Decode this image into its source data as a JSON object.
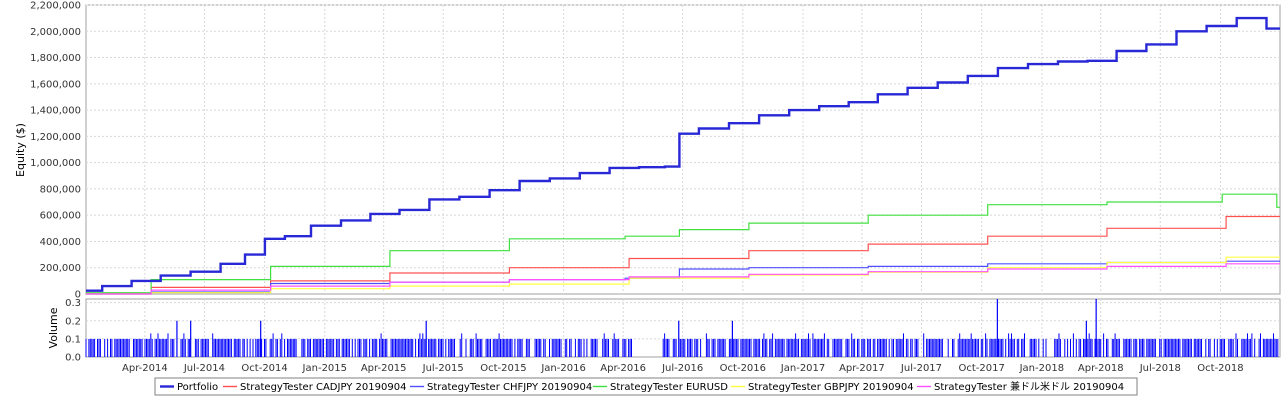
{
  "chart_data": [
    {
      "type": "line",
      "ylabel": "Equity ($)",
      "ylim": [
        0,
        2200000
      ],
      "yticks": [
        0,
        200000,
        400000,
        600000,
        800000,
        1000000,
        1200000,
        1400000,
        1600000,
        1800000,
        2000000,
        2200000
      ],
      "ytick_labels": [
        "0",
        "200,000",
        "400,000",
        "600,000",
        "800,000",
        "1,000,000",
        "1,200,000",
        "1,400,000",
        "1,600,000",
        "1,800,000",
        "2,000,000",
        "2,200,000"
      ],
      "grid": true,
      "legend_position": "bottom",
      "series": [
        {
          "name": "Portfolio",
          "color": "#2828d6",
          "x": [
            "2014-01-01",
            "2014-02-15",
            "2014-04-01",
            "2014-05-15",
            "2014-07-01",
            "2014-08-15",
            "2014-09-15",
            "2014-10-15",
            "2014-11-15",
            "2015-01-01",
            "2015-02-15",
            "2015-04-01",
            "2015-05-15",
            "2015-07-01",
            "2015-08-15",
            "2015-10-01",
            "2015-11-15",
            "2016-01-01",
            "2016-02-15",
            "2016-04-01",
            "2016-05-15",
            "2016-06-20",
            "2016-07-01",
            "2016-08-15",
            "2016-10-01",
            "2016-11-15",
            "2017-01-01",
            "2017-02-15",
            "2017-04-01",
            "2017-05-15",
            "2017-07-01",
            "2017-08-15",
            "2017-10-01",
            "2017-11-15",
            "2018-01-01",
            "2018-02-15",
            "2018-04-01",
            "2018-05-15",
            "2018-07-01",
            "2018-08-15",
            "2018-10-01",
            "2018-11-15",
            "2018-12-31"
          ],
          "values": [
            25000,
            60000,
            100000,
            140000,
            170000,
            230000,
            300000,
            420000,
            440000,
            520000,
            560000,
            610000,
            640000,
            720000,
            740000,
            790000,
            860000,
            880000,
            920000,
            960000,
            965000,
            970000,
            1220000,
            1260000,
            1300000,
            1360000,
            1400000,
            1430000,
            1460000,
            1520000,
            1570000,
            1610000,
            1660000,
            1720000,
            1750000,
            1770000,
            1775000,
            1850000,
            1900000,
            2000000,
            2040000,
            2100000,
            2020000
          ]
        },
        {
          "name": "StrategyTester CADJPY 20190904",
          "color": "#ff5050",
          "x": [
            "2014-01-01",
            "2014-07-01",
            "2015-01-01",
            "2015-07-01",
            "2016-01-01",
            "2016-07-01",
            "2017-01-01",
            "2017-07-01",
            "2018-01-01",
            "2018-07-01",
            "2018-12-31"
          ],
          "values": [
            5000,
            50000,
            100000,
            160000,
            200000,
            270000,
            330000,
            380000,
            440000,
            500000,
            590000
          ]
        },
        {
          "name": "StrategyTester CHFJPY 20190904",
          "color": "#5050ff",
          "x": [
            "2014-01-01",
            "2014-07-01",
            "2015-01-01",
            "2015-07-01",
            "2016-01-01",
            "2016-06-20",
            "2016-07-01",
            "2017-01-01",
            "2017-07-01",
            "2018-01-01",
            "2018-07-01",
            "2018-12-31"
          ],
          "values": [
            0,
            15000,
            80000,
            90000,
            110000,
            120000,
            190000,
            200000,
            210000,
            230000,
            240000,
            250000
          ]
        },
        {
          "name": "StrategyTester EURUSD",
          "color": "#40e040",
          "x": [
            "2014-01-01",
            "2014-07-01",
            "2015-01-01",
            "2015-07-01",
            "2016-01-01",
            "2016-06-20",
            "2016-07-01",
            "2017-01-01",
            "2017-07-01",
            "2018-01-01",
            "2018-07-01",
            "2018-12-20",
            "2018-12-31"
          ],
          "values": [
            10000,
            110000,
            210000,
            330000,
            420000,
            440000,
            490000,
            540000,
            600000,
            680000,
            700000,
            760000,
            660000
          ]
        },
        {
          "name": "StrategyTester GBPJPY 20190904",
          "color": "#ffff40",
          "x": [
            "2014-01-01",
            "2014-07-01",
            "2015-01-01",
            "2015-07-01",
            "2016-01-01",
            "2016-07-01",
            "2017-01-01",
            "2017-07-01",
            "2018-01-01",
            "2018-07-01",
            "2018-12-31"
          ],
          "values": [
            0,
            10000,
            40000,
            60000,
            75000,
            120000,
            145000,
            165000,
            200000,
            240000,
            280000
          ]
        },
        {
          "name": "StrategyTester 兼ドル米ドル 20190904",
          "color": "#ff50ff",
          "x": [
            "2014-01-01",
            "2014-07-01",
            "2015-01-01",
            "2015-07-01",
            "2016-01-01",
            "2016-07-01",
            "2017-01-01",
            "2017-07-01",
            "2018-01-01",
            "2018-07-01",
            "2018-12-31"
          ],
          "values": [
            0,
            30000,
            60000,
            90000,
            110000,
            130000,
            150000,
            170000,
            190000,
            210000,
            230000
          ]
        }
      ]
    },
    {
      "type": "bar",
      "ylabel": "Volume",
      "ylim": [
        0,
        0.32
      ],
      "yticks": [
        0,
        0.1,
        0.2,
        0.3
      ],
      "ytick_labels": [
        "0.0",
        "0.1",
        "0.2",
        "0.3"
      ],
      "color": "#0000ff",
      "base_value": 0.1,
      "gaps": [
        [
          "2016-04-15",
          "2016-06-01"
        ]
      ],
      "spikes": [
        {
          "x": "2014-05-20",
          "value": 0.2
        },
        {
          "x": "2014-06-10",
          "value": 0.2
        },
        {
          "x": "2014-09-25",
          "value": 0.2
        },
        {
          "x": "2015-06-05",
          "value": 0.2
        },
        {
          "x": "2016-06-25",
          "value": 0.2
        },
        {
          "x": "2016-09-15",
          "value": 0.2
        },
        {
          "x": "2017-10-25",
          "value": 0.32
        },
        {
          "x": "2018-03-10",
          "value": 0.2
        },
        {
          "x": "2018-03-25",
          "value": 0.32
        }
      ],
      "xlim": [
        "2014-01-01",
        "2018-12-31"
      ],
      "xtick_labels": [
        "Apr-2014",
        "Jul-2014",
        "Oct-2014",
        "Jan-2015",
        "Apr-2015",
        "Jul-2015",
        "Oct-2015",
        "Jan-2016",
        "Apr-2016",
        "Jul-2016",
        "Oct-2016",
        "Jan-2017",
        "Apr-2017",
        "Jul-2017",
        "Oct-2017",
        "Jan-2018",
        "Apr-2018",
        "Jul-2018",
        "Oct-2018"
      ],
      "xtick_dates": [
        "2014-04-01",
        "2014-07-01",
        "2014-10-01",
        "2015-01-01",
        "2015-04-01",
        "2015-07-01",
        "2015-10-01",
        "2016-01-01",
        "2016-04-01",
        "2016-07-01",
        "2016-10-01",
        "2017-01-01",
        "2017-04-01",
        "2017-07-01",
        "2017-10-01",
        "2018-01-01",
        "2018-04-01",
        "2018-07-01",
        "2018-10-01"
      ]
    }
  ]
}
